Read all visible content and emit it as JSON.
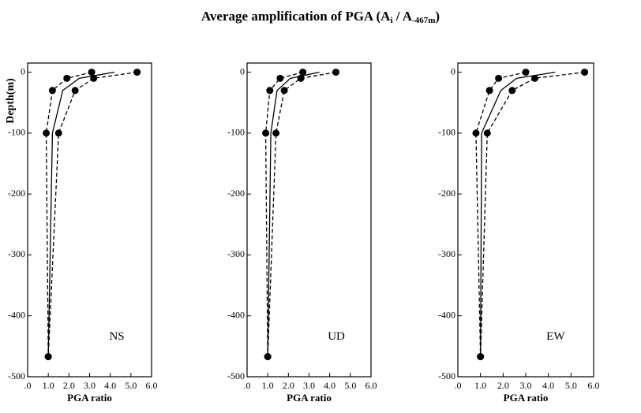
{
  "title_parts": [
    "Average amplification of PGA (A",
    "i",
    " / A",
    "-467m",
    ")"
  ],
  "chart_data": [
    {
      "type": "line",
      "annotation": "NS",
      "xlabel": "PGA ratio",
      "ylabel": "Depth(m)",
      "y": [
        0,
        -10,
        -30,
        -100,
        -467
      ],
      "series": [
        {
          "style": "dashed",
          "markers": true,
          "color": "#000000",
          "values": [
            3.1,
            1.9,
            1.2,
            0.9,
            1.0
          ]
        },
        {
          "style": "solid",
          "markers": false,
          "color": "#000000",
          "values": [
            4.2,
            2.5,
            1.7,
            1.2,
            1.0
          ]
        },
        {
          "style": "dashed",
          "markers": true,
          "color": "#000000",
          "values": [
            5.3,
            3.2,
            2.3,
            1.5,
            1.0
          ]
        }
      ],
      "xlim": [
        0,
        6
      ],
      "ylim": [
        -500,
        15
      ],
      "xticks": [
        {
          "value": 0,
          "label": ".0"
        },
        {
          "value": 1,
          "label": "1.0"
        },
        {
          "value": 2,
          "label": "2.0"
        },
        {
          "value": 3,
          "label": "3.0"
        },
        {
          "value": 4,
          "label": "4.0"
        },
        {
          "value": 5,
          "label": "5.0"
        },
        {
          "value": 6,
          "label": "6.0"
        }
      ],
      "yticks": [
        0,
        -100,
        -200,
        -300,
        -400,
        -500
      ]
    },
    {
      "type": "line",
      "annotation": "UD",
      "xlabel": "PGA ratio",
      "y": [
        0,
        -10,
        -30,
        -100,
        -467
      ],
      "series": [
        {
          "style": "dashed",
          "markers": true,
          "color": "#000000",
          "values": [
            2.7,
            1.6,
            1.1,
            0.9,
            1.0
          ]
        },
        {
          "style": "solid",
          "markers": false,
          "color": "#000000",
          "values": [
            3.5,
            2.1,
            1.45,
            1.15,
            1.0
          ]
        },
        {
          "style": "dashed",
          "markers": true,
          "color": "#000000",
          "values": [
            4.3,
            2.6,
            1.8,
            1.4,
            1.0
          ]
        }
      ],
      "xlim": [
        0,
        6
      ],
      "ylim": [
        -500,
        15
      ],
      "xticks": [
        {
          "value": 0,
          "label": ".0"
        },
        {
          "value": 1,
          "label": "1.0"
        },
        {
          "value": 2,
          "label": "2.0"
        },
        {
          "value": 3,
          "label": "3.0"
        },
        {
          "value": 4,
          "label": "4.0"
        },
        {
          "value": 5,
          "label": "5.0"
        },
        {
          "value": 6,
          "label": "6.0"
        }
      ],
      "yticks": [
        0,
        -100,
        -200,
        -300,
        -400,
        -500
      ]
    },
    {
      "type": "line",
      "annotation": "EW",
      "xlabel": "PGA ratio",
      "y": [
        0,
        -10,
        -30,
        -100,
        -467
      ],
      "series": [
        {
          "style": "dashed",
          "markers": true,
          "color": "#000000",
          "values": [
            3.0,
            1.8,
            1.4,
            0.8,
            1.0
          ]
        },
        {
          "style": "solid",
          "markers": false,
          "color": "#000000",
          "values": [
            4.3,
            2.6,
            1.9,
            1.05,
            1.0
          ]
        },
        {
          "style": "dashed",
          "markers": true,
          "color": "#000000",
          "values": [
            5.6,
            3.4,
            2.4,
            1.3,
            1.0
          ]
        }
      ],
      "xlim": [
        0,
        6
      ],
      "ylim": [
        -500,
        15
      ],
      "xticks": [
        {
          "value": 0,
          "label": ".0"
        },
        {
          "value": 1,
          "label": "1.0"
        },
        {
          "value": 2,
          "label": "2.0"
        },
        {
          "value": 3,
          "label": "3.0"
        },
        {
          "value": 4,
          "label": "4.0"
        },
        {
          "value": 5,
          "label": "5.0"
        },
        {
          "value": 6,
          "label": "6.0"
        }
      ],
      "yticks": [
        0,
        -100,
        -200,
        -300,
        -400,
        -500
      ]
    }
  ]
}
